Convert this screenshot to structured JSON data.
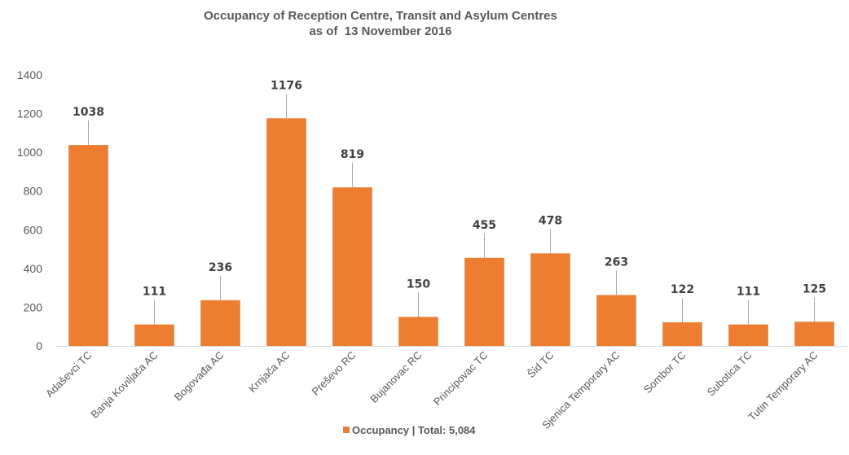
{
  "chart_data": {
    "type": "bar",
    "title": "Occupancy of Reception Centre, Transit and Asylum Centres",
    "subtitle": "as of  13 November 2016",
    "categories": [
      "Adaševci TC",
      "Banja Koviljača AC",
      "Bogovađa AC",
      "Krnjača AC",
      "Preševo RC",
      "Bujanovac RC",
      "Principovac TC",
      "Šid TC",
      "Sjenica Temporary AC",
      "Sombor TC",
      "Subotica TC",
      "Tutin Temporary AC"
    ],
    "series": [
      {
        "name": "Occupancy | Total: 5,084",
        "values": [
          1038,
          111,
          236,
          1176,
          819,
          150,
          455,
          478,
          263,
          122,
          111,
          125
        ],
        "color": "#ED7D31"
      }
    ],
    "data_labels": [
      "1038",
      "111",
      "236",
      "1176",
      "819",
      "150",
      "455",
      "478",
      "263",
      "122",
      "111",
      "125"
    ],
    "y_ticks": [
      "0",
      "200",
      "400",
      "600",
      "800",
      "1000",
      "1200",
      "1400"
    ],
    "ylim": [
      0,
      1400
    ],
    "grid": false,
    "legend_position": "bottom",
    "xlabel": "",
    "ylabel": ""
  }
}
